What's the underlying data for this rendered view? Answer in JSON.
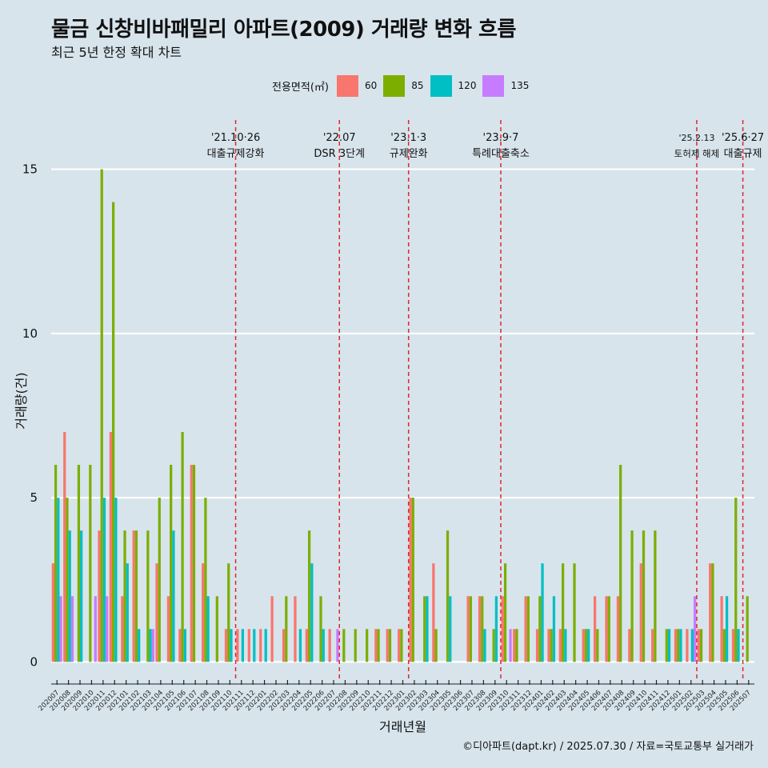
{
  "title": "물금 신창비바패밀리 아파트(2009) 거래량 변화 흐름",
  "subtitle": "최근 5년 한정 확대 차트",
  "caption": "©디아파트(dapt.kr) / 2025.07.30 / 자료=국토교통부 실거래가",
  "chart_data": {
    "type": "bar",
    "title": "물금 신창비바패밀리 아파트(2009) 거래량 변화 흐름",
    "xlabel": "거래년월",
    "ylabel": "거래량(건)",
    "ylim": [
      -0.6,
      16.5
    ],
    "yticks": [
      0,
      5,
      10,
      15
    ],
    "grid": "horizontal",
    "legend": {
      "title": "전용면적(㎡)",
      "placement": "top"
    },
    "categories": [
      "202007",
      "202008",
      "202009",
      "202010",
      "202011",
      "202012",
      "202101",
      "202102",
      "202103",
      "202104",
      "202105",
      "202106",
      "202107",
      "202108",
      "202109",
      "202110",
      "202111",
      "202112",
      "202201",
      "202202",
      "202203",
      "202204",
      "202205",
      "202206",
      "202207",
      "202208",
      "202209",
      "202210",
      "202211",
      "202212",
      "202301",
      "202302",
      "202303",
      "202304",
      "202305",
      "202306",
      "202307",
      "202308",
      "202309",
      "202310",
      "202311",
      "202312",
      "202401",
      "202402",
      "202403",
      "202404",
      "202405",
      "202406",
      "202407",
      "202408",
      "202409",
      "202410",
      "202411",
      "202412",
      "202501",
      "202502",
      "202503",
      "202504",
      "202505",
      "202506",
      "202507"
    ],
    "series": [
      {
        "name": "60",
        "color": "#f8766d",
        "values": [
          3,
          7,
          0,
          0,
          4,
          7,
          2,
          4,
          0,
          3,
          2,
          1,
          6,
          3,
          0,
          1,
          1,
          1,
          1,
          2,
          1,
          2,
          1,
          0,
          1,
          0,
          0,
          0,
          1,
          1,
          1,
          5,
          0,
          3,
          0,
          0,
          2,
          2,
          0,
          2,
          1,
          2,
          1,
          1,
          1,
          0,
          1,
          2,
          2,
          2,
          1,
          3,
          1,
          0,
          1,
          1,
          1,
          3,
          2,
          1,
          0
        ]
      },
      {
        "name": "85",
        "color": "#7cae00",
        "values": [
          6,
          5,
          6,
          6,
          15,
          14,
          4,
          4,
          4,
          5,
          6,
          7,
          6,
          5,
          2,
          3,
          0,
          0,
          0,
          0,
          2,
          0,
          4,
          2,
          0,
          1,
          1,
          1,
          1,
          1,
          1,
          5,
          2,
          1,
          4,
          0,
          2,
          2,
          1,
          3,
          1,
          2,
          2,
          1,
          3,
          3,
          1,
          1,
          2,
          6,
          4,
          4,
          4,
          1,
          1,
          0,
          1,
          3,
          1,
          5,
          2
        ]
      },
      {
        "name": "120",
        "color": "#00bfc4",
        "values": [
          5,
          4,
          4,
          0,
          5,
          5,
          3,
          1,
          1,
          0,
          4,
          1,
          0,
          2,
          0,
          1,
          1,
          1,
          1,
          0,
          0,
          1,
          3,
          1,
          0,
          0,
          0,
          0,
          0,
          0,
          0,
          0,
          2,
          0,
          2,
          0,
          0,
          1,
          2,
          0,
          0,
          0,
          3,
          2,
          1,
          0,
          1,
          0,
          0,
          0,
          0,
          0,
          0,
          1,
          1,
          1,
          0,
          0,
          2,
          1,
          0
        ]
      },
      {
        "name": "135",
        "color": "#c77cff",
        "values": [
          2,
          2,
          0,
          2,
          2,
          0,
          0,
          0,
          1,
          0,
          0,
          0,
          0,
          0,
          0,
          0,
          0,
          0,
          0,
          0,
          0,
          0,
          0,
          0,
          1,
          0,
          0,
          0,
          0,
          0,
          0,
          0,
          0,
          0,
          0,
          0,
          0,
          0,
          0,
          1,
          0,
          0,
          0,
          0,
          0,
          0,
          0,
          0,
          0,
          0,
          0,
          0,
          0,
          0,
          0,
          2,
          0,
          0,
          0,
          0,
          0
        ]
      }
    ],
    "events": [
      {
        "after": "202110",
        "date": "'21.10·26",
        "label": "대출규제강화"
      },
      {
        "after": "202207",
        "date": "'22.07",
        "label": "DSR 3단계"
      },
      {
        "after": "202301",
        "date": "'23.1·3",
        "label": "규제완화"
      },
      {
        "after": "202309",
        "date": "'23.9·7",
        "label": "특례대출축소"
      },
      {
        "after": "202502",
        "date": "'25.2.13",
        "label": "토허제 해제"
      },
      {
        "after": "202506",
        "date": "'25.6·27",
        "label": "대출규제"
      }
    ]
  }
}
